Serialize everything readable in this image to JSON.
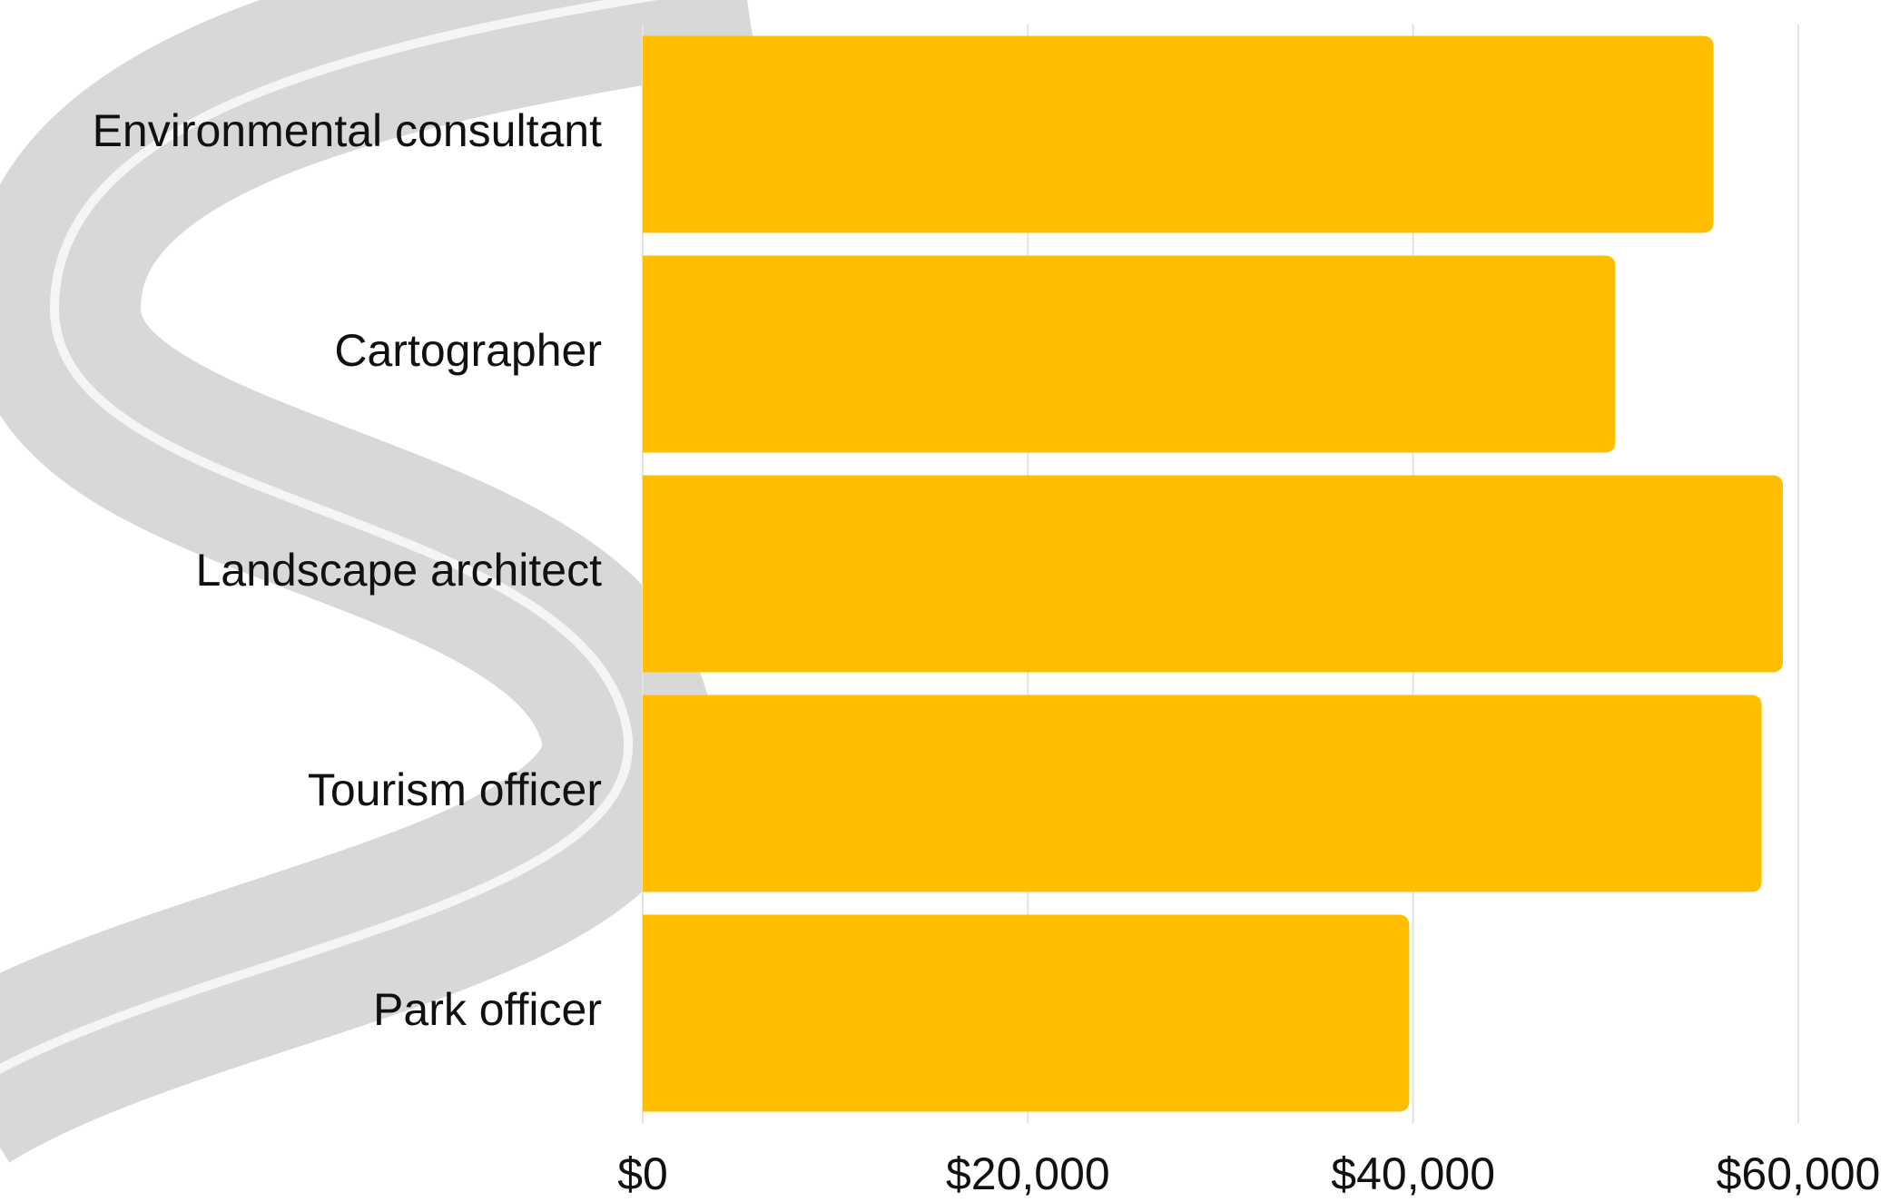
{
  "chart_data": {
    "type": "bar",
    "orientation": "horizontal",
    "categories": [
      "Environmental consultant",
      "Cartographer",
      "Landscape architect",
      "Tourism officer",
      "Park officer"
    ],
    "values": [
      55600,
      50500,
      59200,
      58100,
      39800
    ],
    "color": "#ffbf00",
    "xlim": [
      0,
      60000
    ],
    "xticks": [
      {
        "value": 0,
        "label": "$0"
      },
      {
        "value": 20000,
        "label": "$20,000"
      },
      {
        "value": 40000,
        "label": "$40,000"
      },
      {
        "value": 60000,
        "label": "$60,000"
      }
    ],
    "grid": true
  }
}
